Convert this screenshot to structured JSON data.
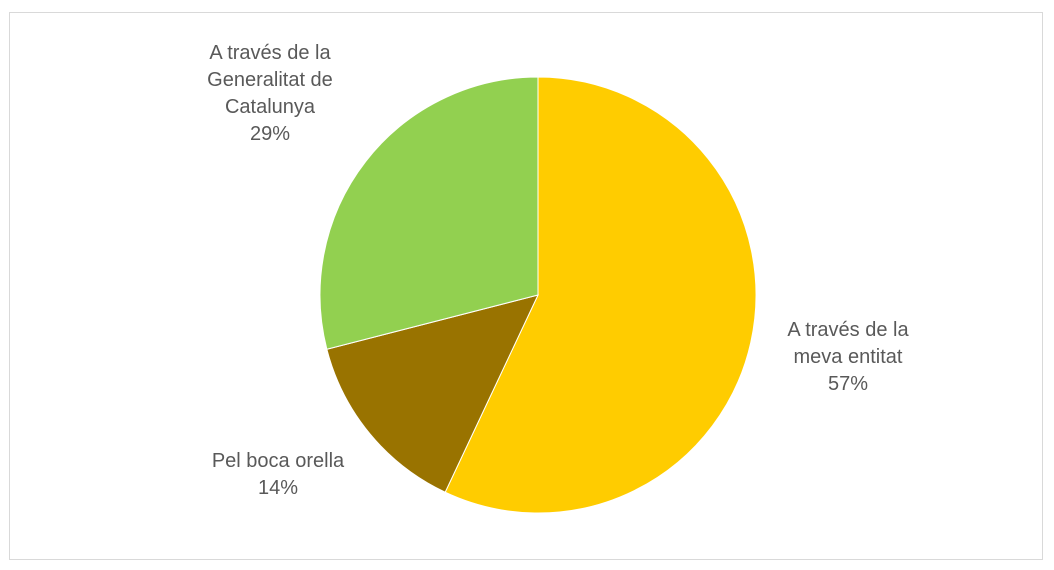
{
  "chart_data": {
    "type": "pie",
    "title": "",
    "categories": [
      "A través de la meva entitat",
      "Pel boca orella",
      "A través de la Generalitat de Catalunya"
    ],
    "values": [
      57,
      14,
      29
    ],
    "unit": "%",
    "labels": [
      {
        "lines": [
          "A través de la",
          "meva entitat"
        ],
        "percent": "57%"
      },
      {
        "lines": [
          "Pel boca orella"
        ],
        "percent": "14%"
      },
      {
        "lines": [
          "A través de la",
          "Generalitat de",
          "Catalunya"
        ],
        "percent": "29%"
      }
    ],
    "colors": [
      "#ffcc00",
      "#997300",
      "#92d050"
    ],
    "legend": "none",
    "start_angle": "12 o'clock",
    "direction": "clockwise"
  }
}
